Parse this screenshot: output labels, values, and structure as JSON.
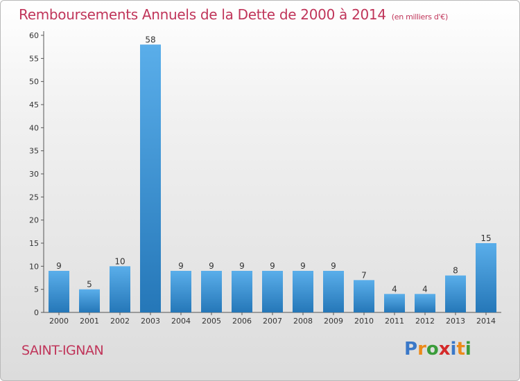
{
  "title": "Remboursements Annuels de la Dette de 2000 à 2014",
  "subtitle": "(en milliers d'€)",
  "commune": "SAINT-IGNAN",
  "logo": {
    "text": "Proxiti",
    "letters": [
      {
        "char": "P",
        "color": "#3a78c8"
      },
      {
        "char": "r",
        "color": "#ec8a1a"
      },
      {
        "char": "o",
        "color": "#3a9c3a"
      },
      {
        "char": "x",
        "color": "#d42a2a"
      },
      {
        "char": "i",
        "color": "#3a78c8"
      },
      {
        "char": "t",
        "color": "#ec8a1a"
      },
      {
        "char": "i",
        "color": "#3a9c3a"
      }
    ]
  },
  "colors": {
    "text": "#c0355a",
    "bar_light": "#5aaeea",
    "bar_dark": "#2577b8",
    "grid": "#c8c8c8"
  },
  "chart_data": {
    "type": "bar",
    "title": "Remboursements Annuels de la Dette de 2000 à 2014",
    "subtitle": "(en milliers d'€)",
    "xlabel": "",
    "ylabel": "",
    "ylim": [
      0,
      60
    ],
    "yticks": [
      0,
      5,
      10,
      15,
      20,
      25,
      30,
      35,
      40,
      45,
      50,
      55,
      60
    ],
    "grid": false,
    "categories": [
      "2000",
      "2001",
      "2002",
      "2003",
      "2004",
      "2005",
      "2006",
      "2007",
      "2008",
      "2009",
      "2010",
      "2011",
      "2012",
      "2013",
      "2014"
    ],
    "values": [
      9,
      5,
      10,
      58,
      9,
      9,
      9,
      9,
      9,
      9,
      7,
      4,
      4,
      8,
      15
    ]
  }
}
